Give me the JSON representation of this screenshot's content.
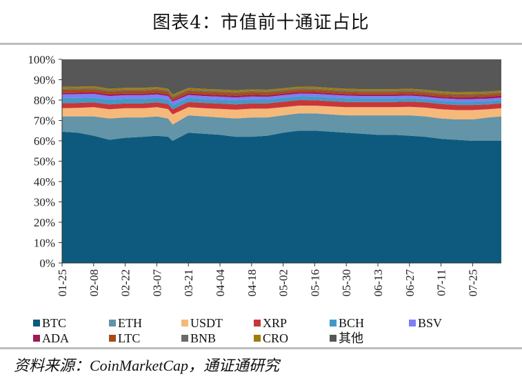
{
  "title": "图表4：市值前十通证占比",
  "source": "资料来源：CoinMarketCap，通证通研究",
  "chart_data": {
    "type": "area",
    "stacked": true,
    "title": "图表4：市值前十通证占比",
    "xlabel": "",
    "ylabel": "",
    "ylim": [
      0,
      100
    ],
    "yticks": [
      "0%",
      "10%",
      "20%",
      "30%",
      "40%",
      "50%",
      "60%",
      "70%",
      "80%",
      "90%",
      "100%"
    ],
    "xticks": [
      "01-25",
      "02-08",
      "02-22",
      "03-07",
      "03-21",
      "04-04",
      "04-18",
      "05-02",
      "05-16",
      "05-30",
      "06-13",
      "06-27",
      "07-11",
      "07-25"
    ],
    "x": [
      "01-25",
      "02-01",
      "02-08",
      "02-15",
      "02-22",
      "03-01",
      "03-07",
      "03-12",
      "03-14",
      "03-21",
      "03-28",
      "04-04",
      "04-11",
      "04-18",
      "04-25",
      "05-02",
      "05-09",
      "05-16",
      "05-23",
      "05-30",
      "06-06",
      "06-13",
      "06-20",
      "06-27",
      "07-04",
      "07-11",
      "07-18",
      "07-25",
      "08-01",
      "08-07"
    ],
    "series": [
      {
        "name": "BTC",
        "color": "#0e5a7e",
        "values": [
          64.5,
          64.0,
          62.5,
          60.5,
          61.5,
          62.0,
          62.5,
          62.0,
          60.0,
          64.0,
          63.5,
          63.0,
          62.0,
          62.0,
          62.5,
          64.0,
          65.0,
          65.0,
          64.5,
          64.0,
          63.5,
          63.0,
          63.0,
          62.5,
          62.0,
          61.0,
          60.5,
          60.0,
          60.0,
          60.0
        ]
      },
      {
        "name": "ETH",
        "color": "#6394a8",
        "values": [
          7.5,
          8.0,
          9.5,
          10.5,
          10.0,
          9.5,
          9.5,
          9.0,
          8.0,
          8.5,
          8.5,
          8.5,
          9.0,
          9.5,
          9.0,
          8.5,
          8.5,
          8.5,
          8.5,
          8.5,
          9.0,
          9.5,
          9.5,
          10.0,
          10.0,
          10.0,
          10.0,
          10.5,
          11.5,
          12.0
        ]
      },
      {
        "name": "USDT",
        "color": "#f5b97a",
        "values": [
          4.0,
          4.2,
          4.5,
          4.5,
          4.5,
          4.5,
          4.5,
          4.6,
          5.0,
          4.0,
          4.0,
          4.2,
          4.3,
          4.3,
          4.3,
          4.0,
          3.8,
          3.8,
          3.9,
          4.0,
          4.0,
          4.0,
          4.0,
          4.2,
          4.3,
          4.5,
          4.6,
          4.6,
          4.0,
          4.0
        ]
      },
      {
        "name": "XRP",
        "color": "#c8363a",
        "values": [
          2.5,
          2.4,
          2.4,
          2.4,
          2.4,
          2.4,
          2.4,
          2.5,
          2.5,
          2.6,
          2.6,
          2.6,
          2.6,
          2.6,
          2.6,
          2.7,
          2.7,
          2.6,
          2.6,
          2.6,
          2.6,
          2.6,
          2.6,
          2.6,
          2.6,
          2.6,
          2.5,
          2.5,
          2.4,
          2.4
        ]
      },
      {
        "name": "BCH",
        "color": "#4399c6",
        "values": [
          2.5,
          2.5,
          2.4,
          2.4,
          2.3,
          2.3,
          2.2,
          2.2,
          2.2,
          2.0,
          2.0,
          2.0,
          2.0,
          2.0,
          1.9,
          1.9,
          1.9,
          1.9,
          1.8,
          1.8,
          1.7,
          1.7,
          1.7,
          1.7,
          1.6,
          1.6,
          1.7,
          1.7,
          1.6,
          1.6
        ]
      },
      {
        "name": "BSV",
        "color": "#7f7ef5",
        "values": [
          1.8,
          1.8,
          1.8,
          1.7,
          1.7,
          1.7,
          1.7,
          1.7,
          1.6,
          1.4,
          1.4,
          1.4,
          1.4,
          1.4,
          1.3,
          1.3,
          1.3,
          1.3,
          1.3,
          1.3,
          1.2,
          1.2,
          1.2,
          1.2,
          1.2,
          1.2,
          1.2,
          1.2,
          1.2,
          1.2
        ]
      },
      {
        "name": "ADA",
        "color": "#9e1a56",
        "values": [
          0.8,
          0.8,
          0.8,
          0.8,
          0.8,
          0.8,
          0.8,
          0.8,
          0.7,
          0.8,
          0.8,
          0.8,
          0.8,
          0.8,
          0.8,
          0.8,
          0.8,
          0.8,
          0.8,
          0.8,
          0.8,
          0.8,
          0.8,
          0.8,
          0.8,
          0.8,
          0.9,
          1.0,
          1.0,
          1.0
        ]
      },
      {
        "name": "LTC",
        "color": "#a84c14",
        "values": [
          1.5,
          1.5,
          1.5,
          1.4,
          1.4,
          1.4,
          1.4,
          1.4,
          1.3,
          1.3,
          1.3,
          1.3,
          1.3,
          1.3,
          1.3,
          1.2,
          1.2,
          1.2,
          1.2,
          1.2,
          1.2,
          1.2,
          1.2,
          1.2,
          1.2,
          1.2,
          1.1,
          1.1,
          1.1,
          1.1
        ]
      },
      {
        "name": "BNB",
        "color": "#6a6a6a",
        "values": [
          0.6,
          0.6,
          0.6,
          0.6,
          0.6,
          0.6,
          0.6,
          0.6,
          0.6,
          0.6,
          0.6,
          0.6,
          0.6,
          0.6,
          0.6,
          0.6,
          0.6,
          0.6,
          0.6,
          0.6,
          0.6,
          0.6,
          0.6,
          0.6,
          0.6,
          0.6,
          0.6,
          0.6,
          0.6,
          0.6
        ]
      },
      {
        "name": "CRO",
        "color": "#9e7d08",
        "values": [
          0.8,
          0.8,
          0.8,
          0.8,
          0.8,
          0.8,
          0.8,
          0.8,
          0.8,
          0.8,
          0.8,
          0.8,
          0.8,
          0.8,
          0.8,
          0.8,
          0.8,
          0.8,
          0.8,
          0.8,
          0.8,
          0.8,
          0.8,
          0.8,
          0.8,
          0.8,
          0.8,
          0.8,
          0.8,
          0.8
        ]
      },
      {
        "name": "其他",
        "color": "#575757",
        "values": [
          13.5,
          13.4,
          13.2,
          14.9,
          14.0,
          13.0,
          12.6,
          13.4,
          16.5,
          13.2,
          13.7,
          13.9,
          14.4,
          13.9,
          13.9,
          13.3,
          12.6,
          12.6,
          13.2,
          13.6,
          14.0,
          14.2,
          14.2,
          13.9,
          14.3,
          15.1,
          15.3,
          15.3,
          15.0,
          14.9
        ]
      }
    ],
    "legend_position": "bottom",
    "grid": false
  }
}
